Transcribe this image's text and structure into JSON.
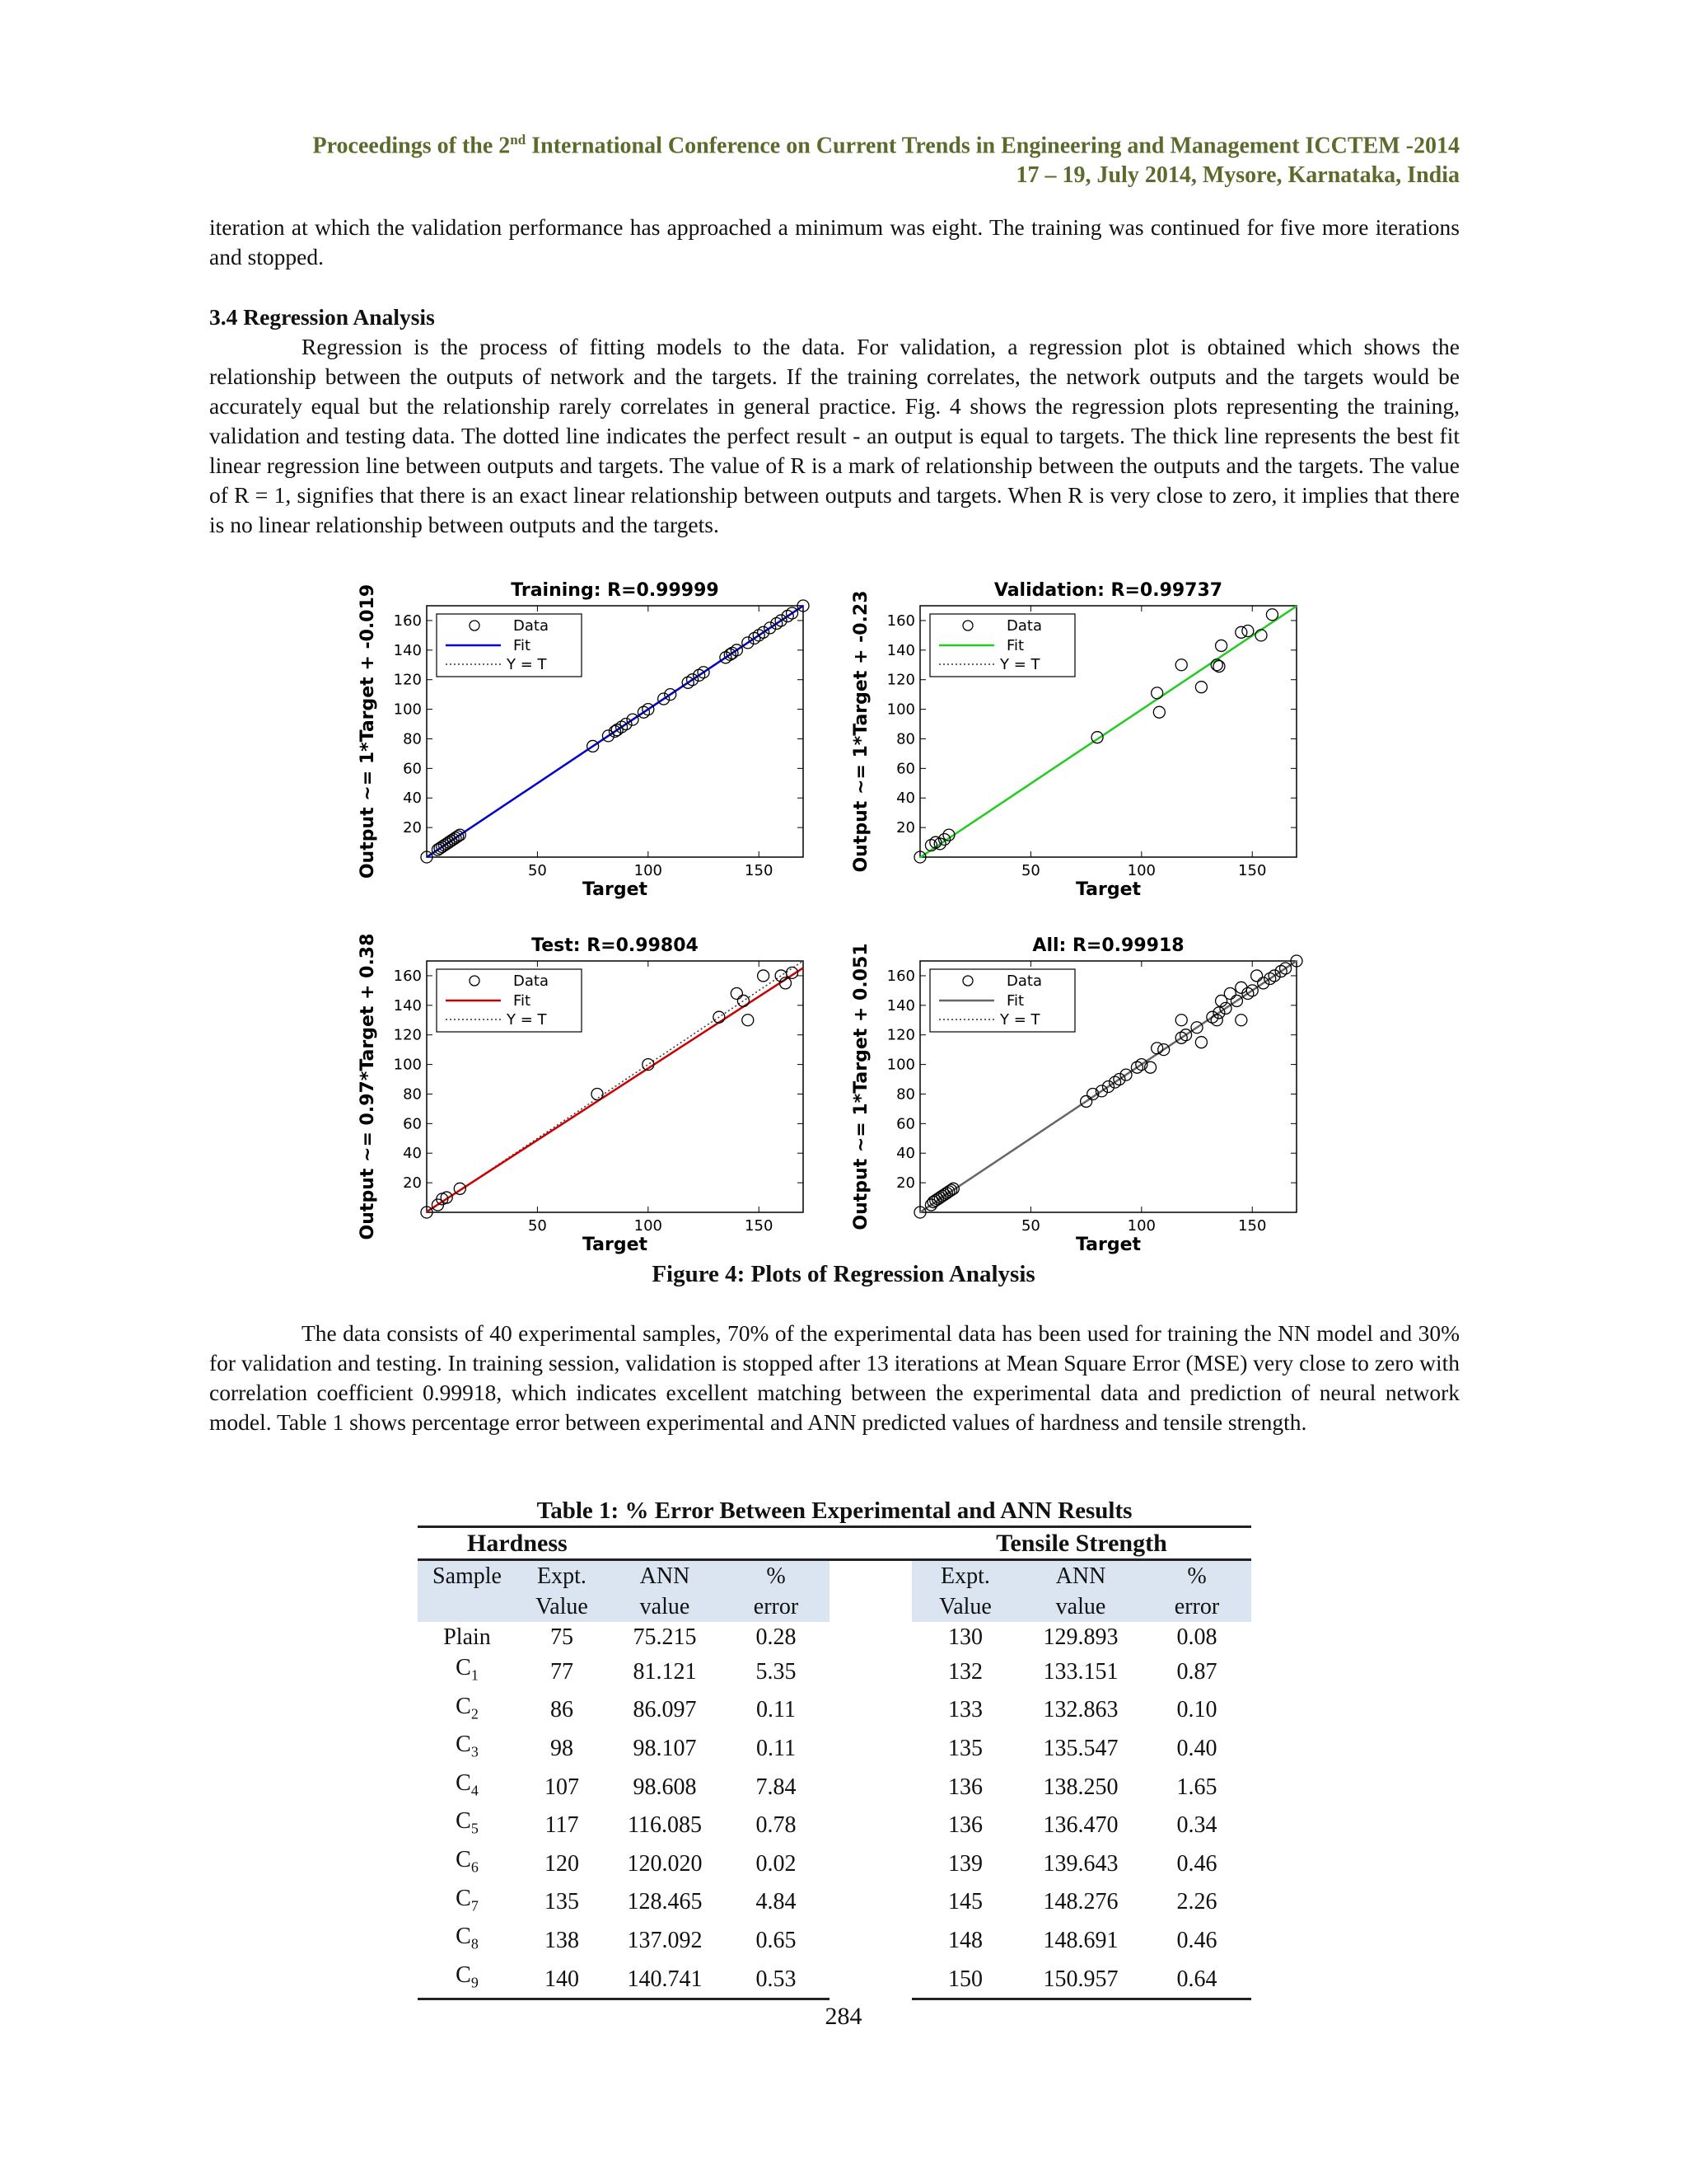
{
  "header": {
    "line1_prefix": "Proceedings of the 2",
    "line1_sup": "nd",
    "line1_suffix": " International Conference on Current Trends in Engineering and Management ICCTEM -2014",
    "line2": "17 – 19, July 2014, Mysore, Karnataka, India"
  },
  "intro_paragraph": "iteration at which the validation performance has approached a minimum was eight. The training was continued for five more iterations and stopped.",
  "section": {
    "heading": "3.4 Regression Analysis",
    "paragraph": "Regression is the process of fitting models to the data.  For validation, a regression plot is obtained which shows the relationship between the outputs of network and the targets. If the training correlates, the network outputs and the targets would be accurately equal but the relationship rarely correlates in general practice. Fig. 4 shows the regression plots representing the training, validation and testing data. The dotted line indicates the perfect result - an output is equal to targets. The thick line represents the best fit linear regression line between outputs and targets. The value of R is a mark of relationship between the outputs and the targets. The value of R = 1, signifies that there is an exact linear relationship between outputs and targets. When R is very close to zero, it implies that there is no linear relationship between outputs and the targets."
  },
  "figure_caption": "Figure 4:  Plots of Regression Analysis",
  "chart_data": [
    {
      "type": "scatter",
      "title": "Training: R=0.99999",
      "xlabel": "Target",
      "ylabel": "Output ~= 1*Target + -0.019",
      "xlim": [
        0,
        170
      ],
      "ylim": [
        0,
        170
      ],
      "xticks": [
        50,
        100,
        150
      ],
      "yticks": [
        20,
        40,
        60,
        80,
        100,
        120,
        140,
        160
      ],
      "legend": [
        "Data",
        "Fit",
        "Y = T"
      ],
      "legend_position": "top-left",
      "fit": {
        "slope": 1,
        "intercept": -0.019,
        "color": "#0000cc"
      },
      "points": [
        [
          0,
          0
        ],
        [
          5,
          5
        ],
        [
          6,
          6
        ],
        [
          7,
          7
        ],
        [
          8,
          8
        ],
        [
          9,
          9
        ],
        [
          10,
          10
        ],
        [
          11,
          11
        ],
        [
          12,
          12
        ],
        [
          13,
          13
        ],
        [
          14,
          14
        ],
        [
          15,
          15
        ],
        [
          75,
          75
        ],
        [
          82,
          82
        ],
        [
          85,
          85
        ],
        [
          86,
          86
        ],
        [
          88,
          88
        ],
        [
          90,
          90
        ],
        [
          93,
          93
        ],
        [
          98,
          98
        ],
        [
          100,
          100
        ],
        [
          107,
          107
        ],
        [
          110,
          110
        ],
        [
          118,
          118
        ],
        [
          120,
          120
        ],
        [
          123,
          123
        ],
        [
          125,
          125
        ],
        [
          135,
          135
        ],
        [
          137,
          137
        ],
        [
          138,
          138
        ],
        [
          140,
          140
        ],
        [
          145,
          145
        ],
        [
          148,
          148
        ],
        [
          150,
          150
        ],
        [
          152,
          152
        ],
        [
          155,
          155
        ],
        [
          158,
          158
        ],
        [
          160,
          160
        ],
        [
          163,
          163
        ],
        [
          165,
          165
        ],
        [
          170,
          170
        ]
      ]
    },
    {
      "type": "scatter",
      "title": "Validation: R=0.99737",
      "xlabel": "Target",
      "ylabel": "Output ~= 1*Target + -0.23",
      "xlim": [
        0,
        170
      ],
      "ylim": [
        0,
        170
      ],
      "xticks": [
        50,
        100,
        150
      ],
      "yticks": [
        20,
        40,
        60,
        80,
        100,
        120,
        140,
        160
      ],
      "legend": [
        "Data",
        "Fit",
        "Y = T"
      ],
      "legend_position": "top-left",
      "fit": {
        "slope": 1,
        "intercept": -0.23,
        "color": "#22cc22"
      },
      "points": [
        [
          0,
          0
        ],
        [
          5,
          8
        ],
        [
          7,
          10
        ],
        [
          9,
          9
        ],
        [
          11,
          12
        ],
        [
          13,
          15
        ],
        [
          80,
          81
        ],
        [
          107,
          111
        ],
        [
          108,
          98
        ],
        [
          118,
          130
        ],
        [
          127,
          115
        ],
        [
          134,
          130
        ],
        [
          135,
          129
        ],
        [
          136,
          143
        ],
        [
          145,
          152
        ],
        [
          148,
          153
        ],
        [
          154,
          150
        ],
        [
          159,
          164
        ]
      ]
    },
    {
      "type": "scatter",
      "title": "Test: R=0.99804",
      "xlabel": "Target",
      "ylabel": "Output ~= 0.97*Target + 0.38",
      "xlim": [
        0,
        170
      ],
      "ylim": [
        0,
        170
      ],
      "xticks": [
        50,
        100,
        150
      ],
      "yticks": [
        20,
        40,
        60,
        80,
        100,
        120,
        140,
        160
      ],
      "legend": [
        "Data",
        "Fit",
        "Y = T"
      ],
      "legend_position": "top-left",
      "fit": {
        "slope": 0.97,
        "intercept": 0.38,
        "color": "#cc0000"
      },
      "points": [
        [
          0,
          0
        ],
        [
          5,
          5
        ],
        [
          7,
          9
        ],
        [
          9,
          10
        ],
        [
          15,
          16
        ],
        [
          77,
          80
        ],
        [
          100,
          100
        ],
        [
          132,
          132
        ],
        [
          140,
          148
        ],
        [
          143,
          143
        ],
        [
          145,
          130
        ],
        [
          152,
          160
        ],
        [
          160,
          160
        ],
        [
          162,
          155
        ],
        [
          165,
          162
        ]
      ]
    },
    {
      "type": "scatter",
      "title": "All: R=0.99918",
      "xlabel": "Target",
      "ylabel": "Output ~= 1*Target + 0.051",
      "xlim": [
        0,
        170
      ],
      "ylim": [
        0,
        170
      ],
      "xticks": [
        50,
        100,
        150
      ],
      "yticks": [
        20,
        40,
        60,
        80,
        100,
        120,
        140,
        160
      ],
      "legend": [
        "Data",
        "Fit",
        "Y = T"
      ],
      "legend_position": "top-left",
      "fit": {
        "slope": 1,
        "intercept": 0.051,
        "color": "#666666"
      },
      "points": [
        [
          0,
          0
        ],
        [
          5,
          5
        ],
        [
          6,
          7
        ],
        [
          7,
          8
        ],
        [
          8,
          9
        ],
        [
          9,
          10
        ],
        [
          10,
          11
        ],
        [
          11,
          12
        ],
        [
          12,
          13
        ],
        [
          13,
          14
        ],
        [
          14,
          15
        ],
        [
          15,
          16
        ],
        [
          75,
          75
        ],
        [
          78,
          80
        ],
        [
          82,
          82
        ],
        [
          85,
          85
        ],
        [
          88,
          88
        ],
        [
          90,
          90
        ],
        [
          93,
          93
        ],
        [
          98,
          98
        ],
        [
          100,
          100
        ],
        [
          104,
          98
        ],
        [
          107,
          111
        ],
        [
          110,
          110
        ],
        [
          118,
          118
        ],
        [
          118,
          130
        ],
        [
          120,
          120
        ],
        [
          125,
          125
        ],
        [
          127,
          115
        ],
        [
          132,
          132
        ],
        [
          134,
          130
        ],
        [
          135,
          135
        ],
        [
          136,
          143
        ],
        [
          138,
          138
        ],
        [
          140,
          148
        ],
        [
          143,
          143
        ],
        [
          145,
          130
        ],
        [
          145,
          152
        ],
        [
          148,
          148
        ],
        [
          150,
          150
        ],
        [
          152,
          160
        ],
        [
          155,
          155
        ],
        [
          158,
          158
        ],
        [
          160,
          160
        ],
        [
          163,
          163
        ],
        [
          165,
          165
        ],
        [
          170,
          170
        ]
      ]
    }
  ],
  "results_paragraph": "The data consists of 40 experimental samples, 70% of the experimental data has been used for training the NN model and 30% for validation and testing. In training session, validation is stopped after 13 iterations at Mean Square Error (MSE) very close to zero with correlation coefficient 0.99918, which indicates excellent matching between the experimental data and prediction of neural network model. Table 1 shows percentage error between experimental and ANN predicted values of hardness and tensile strength.",
  "table": {
    "title": "Table 1:  % Error Between Experimental and ANN Results",
    "group_hardness": "Hardness",
    "group_tensile": "Tensile Strength",
    "columns_line1": [
      "Sample",
      "Expt.",
      "ANN",
      "%",
      "Expt.",
      "ANN",
      "%"
    ],
    "columns_line2": [
      "",
      "Value",
      "value",
      "error",
      "Value",
      "value",
      "error"
    ],
    "rows": [
      {
        "sample": "Plain",
        "sub": "",
        "h_expt": "75",
        "h_ann": "75.215",
        "h_err": "0.28",
        "t_expt": "130",
        "t_ann": "129.893",
        "t_err": "0.08"
      },
      {
        "sample": "C",
        "sub": "1",
        "h_expt": "77",
        "h_ann": "81.121",
        "h_err": "5.35",
        "t_expt": "132",
        "t_ann": "133.151",
        "t_err": "0.87"
      },
      {
        "sample": "C",
        "sub": "2",
        "h_expt": "86",
        "h_ann": "86.097",
        "h_err": "0.11",
        "t_expt": "133",
        "t_ann": "132.863",
        "t_err": "0.10"
      },
      {
        "sample": "C",
        "sub": "3",
        "h_expt": "98",
        "h_ann": "98.107",
        "h_err": "0.11",
        "t_expt": "135",
        "t_ann": "135.547",
        "t_err": "0.40"
      },
      {
        "sample": "C",
        "sub": "4",
        "h_expt": "107",
        "h_ann": "98.608",
        "h_err": "7.84",
        "t_expt": "136",
        "t_ann": "138.250",
        "t_err": "1.65"
      },
      {
        "sample": "C",
        "sub": "5",
        "h_expt": "117",
        "h_ann": "116.085",
        "h_err": "0.78",
        "t_expt": "136",
        "t_ann": "136.470",
        "t_err": "0.34"
      },
      {
        "sample": "C",
        "sub": "6",
        "h_expt": "120",
        "h_ann": "120.020",
        "h_err": "0.02",
        "t_expt": "139",
        "t_ann": "139.643",
        "t_err": "0.46"
      },
      {
        "sample": "C",
        "sub": "7",
        "h_expt": "135",
        "h_ann": "128.465",
        "h_err": "4.84",
        "t_expt": "145",
        "t_ann": "148.276",
        "t_err": "2.26"
      },
      {
        "sample": "C",
        "sub": "8",
        "h_expt": "138",
        "h_ann": "137.092",
        "h_err": "0.65",
        "t_expt": "148",
        "t_ann": "148.691",
        "t_err": "0.46"
      },
      {
        "sample": "C",
        "sub": "9",
        "h_expt": "140",
        "h_ann": "140.741",
        "h_err": "0.53",
        "t_expt": "150",
        "t_ann": "150.957",
        "t_err": "0.64"
      }
    ]
  },
  "page_number": "284"
}
